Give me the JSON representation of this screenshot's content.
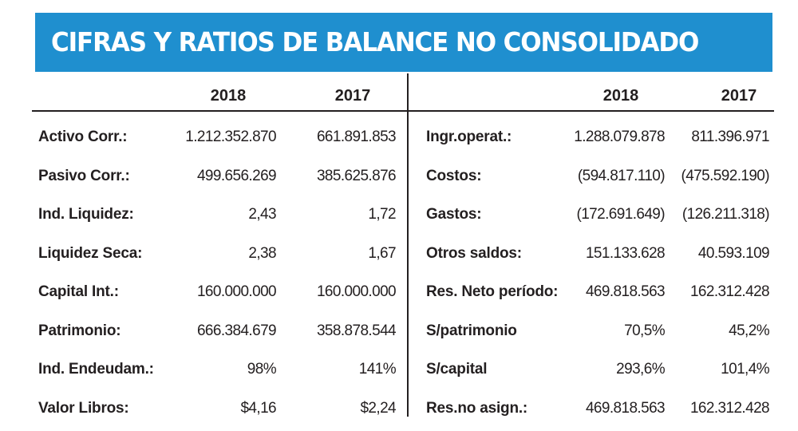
{
  "title": "CIFRAS Y RATIOS DE BALANCE NO CONSOLIDADO",
  "colors": {
    "banner": "#1f8fcf",
    "title_text": "#ffffff",
    "text": "#231f20"
  },
  "left": {
    "years": [
      "2018",
      "2017"
    ],
    "rows": [
      {
        "label": "Activo Corr.:",
        "v2018": "1.212.352.870",
        "v2017": "661.891.853"
      },
      {
        "label": "Pasivo Corr.:",
        "v2018": "499.656.269",
        "v2017": "385.625.876"
      },
      {
        "label": "Ind. Liquidez:",
        "v2018": "2,43",
        "v2017": "1,72"
      },
      {
        "label": "Liquidez Seca:",
        "v2018": "2,38",
        "v2017": "1,67"
      },
      {
        "label": "Capital Int.:",
        "v2018": "160.000.000",
        "v2017": "160.000.000"
      },
      {
        "label": "Patrimonio:",
        "v2018": "666.384.679",
        "v2017": "358.878.544"
      },
      {
        "label": "Ind. Endeudam.:",
        "v2018": "98%",
        "v2017": "141%"
      },
      {
        "label": "Valor Libros:",
        "v2018": "$4,16",
        "v2017": "$2,24"
      }
    ]
  },
  "right": {
    "years": [
      "2018",
      "2017"
    ],
    "rows": [
      {
        "label": "Ingr.operat.:",
        "v2018": "1.288.079.878",
        "v2017": "811.396.971"
      },
      {
        "label": "Costos:",
        "v2018": "(594.817.110)",
        "v2017": "(475.592.190)"
      },
      {
        "label": "Gastos:",
        "v2018": "(172.691.649)",
        "v2017": "(126.211.318)"
      },
      {
        "label": "Otros saldos:",
        "v2018": "151.133.628",
        "v2017": "40.593.109"
      },
      {
        "label": "Res. Neto período:",
        "v2018": "469.818.563",
        "v2017": "162.312.428"
      },
      {
        "label": "S/patrimonio",
        "v2018": "70,5%",
        "v2017": "45,2%"
      },
      {
        "label": "S/capital",
        "v2018": "293,6%",
        "v2017": "101,4%"
      },
      {
        "label": "Res.no asign.:",
        "v2018": "469.818.563",
        "v2017": "162.312.428"
      }
    ]
  }
}
